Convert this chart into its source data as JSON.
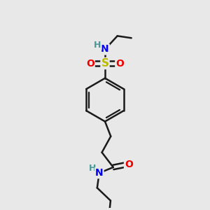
{
  "background_color": "#e8e8e8",
  "bond_color": "#1a1a1a",
  "bond_width": 1.8,
  "atom_colors": {
    "C": "#1a1a1a",
    "H": "#4a9898",
    "N": "#0000ee",
    "O": "#ee0000",
    "S": "#bbbb00"
  },
  "font_size_atom": 10,
  "font_size_H": 9
}
